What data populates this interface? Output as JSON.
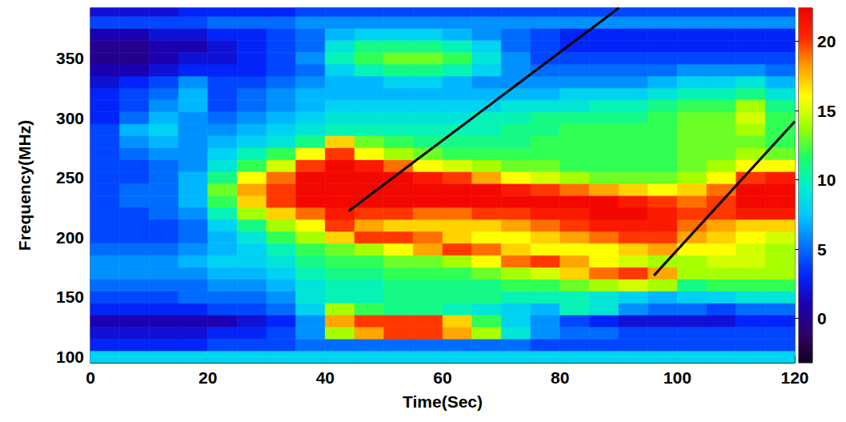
{
  "chart_data": {
    "type": "heatmap",
    "xlabel": "Time(Sec)",
    "ylabel": "Frequency(MHz)",
    "xlim": [
      0,
      120
    ],
    "xticks": [
      0,
      20,
      40,
      60,
      80,
      100,
      120
    ],
    "ylim": [
      95,
      392
    ],
    "yticks": [
      100,
      150,
      200,
      250,
      300,
      350
    ],
    "grid": false,
    "time_bins": [
      0,
      5,
      10,
      15,
      20,
      25,
      30,
      35,
      40,
      45,
      50,
      55,
      60,
      65,
      70,
      75,
      80,
      85,
      90,
      95,
      100,
      105,
      110,
      115,
      120
    ],
    "frequency_bins": [
      95,
      105,
      115,
      125,
      135,
      145,
      155,
      165,
      175,
      185,
      195,
      205,
      215,
      225,
      235,
      245,
      255,
      265,
      275,
      285,
      295,
      305,
      315,
      325,
      335,
      345,
      355,
      365,
      375,
      385,
      395
    ],
    "cells": [
      [
        8,
        8,
        8,
        8,
        8,
        8,
        8,
        8,
        8,
        8,
        8,
        8,
        8,
        8,
        8,
        8,
        8,
        8,
        8,
        8,
        8,
        8,
        8,
        8
      ],
      [
        3,
        3,
        3,
        3,
        4,
        4,
        4,
        5,
        5,
        5,
        5,
        5,
        5,
        5,
        5,
        4,
        4,
        4,
        4,
        4,
        4,
        4,
        4,
        4
      ],
      [
        2,
        2,
        2,
        2,
        3,
        3,
        4,
        6,
        14,
        18,
        20,
        20,
        18,
        14,
        9,
        6,
        5,
        5,
        4,
        4,
        4,
        4,
        4,
        4
      ],
      [
        1,
        1,
        1,
        1,
        1,
        2,
        3,
        6,
        18,
        20,
        20,
        20,
        17,
        12,
        8,
        6,
        4,
        3,
        2,
        2,
        2,
        2,
        3,
        3
      ],
      [
        3,
        3,
        3,
        3,
        4,
        4,
        5,
        8,
        14,
        12,
        11,
        11,
        10,
        9,
        8,
        7,
        10,
        9,
        6,
        5,
        5,
        4,
        5,
        5
      ],
      [
        4,
        4,
        4,
        5,
        5,
        5,
        6,
        9,
        10,
        10,
        11,
        11,
        11,
        11,
        10,
        10,
        10,
        9,
        8,
        7,
        8,
        8,
        9,
        9
      ],
      [
        5,
        5,
        5,
        5,
        6,
        6,
        7,
        9,
        10,
        10,
        11,
        11,
        11,
        11,
        12,
        12,
        13,
        14,
        15,
        14,
        11,
        12,
        12,
        12
      ],
      [
        6,
        6,
        6,
        6,
        7,
        7,
        8,
        10,
        11,
        11,
        12,
        12,
        12,
        13,
        14,
        15,
        17,
        19,
        20,
        18,
        14,
        14,
        14,
        14
      ],
      [
        6,
        6,
        6,
        7,
        8,
        8,
        9,
        11,
        12,
        12,
        13,
        13,
        14,
        16,
        19,
        20,
        18,
        16,
        15,
        14,
        14,
        15,
        15,
        14
      ],
      [
        5,
        5,
        5,
        6,
        7,
        8,
        10,
        12,
        13,
        14,
        16,
        18,
        20,
        19,
        17,
        16,
        16,
        16,
        17,
        18,
        16,
        16,
        15,
        14
      ],
      [
        4,
        4,
        4,
        5,
        7,
        9,
        12,
        14,
        17,
        20,
        20,
        19,
        17,
        16,
        16,
        17,
        18,
        19,
        20,
        20,
        18,
        17,
        16,
        15
      ],
      [
        4,
        4,
        4,
        5,
        8,
        11,
        14,
        16,
        20,
        18,
        17,
        17,
        17,
        17,
        18,
        19,
        20,
        21,
        21,
        21,
        19,
        18,
        17,
        17
      ],
      [
        4,
        4,
        5,
        6,
        10,
        14,
        17,
        19,
        21,
        20,
        20,
        19,
        19,
        20,
        20,
        21,
        21,
        22,
        22,
        21,
        20,
        20,
        21,
        21
      ],
      [
        4,
        5,
        5,
        7,
        12,
        17,
        20,
        22,
        22,
        22,
        22,
        22,
        22,
        22,
        22,
        22,
        22,
        22,
        21,
        20,
        19,
        20,
        22,
        22
      ],
      [
        4,
        5,
        5,
        7,
        13,
        18,
        20,
        22,
        22,
        22,
        22,
        22,
        22,
        22,
        21,
        20,
        19,
        18,
        17,
        16,
        17,
        19,
        22,
        22
      ],
      [
        4,
        4,
        5,
        7,
        11,
        16,
        19,
        22,
        22,
        22,
        22,
        21,
        20,
        18,
        16,
        15,
        14,
        13,
        13,
        13,
        14,
        16,
        20,
        21
      ],
      [
        4,
        4,
        5,
        6,
        9,
        12,
        15,
        20,
        22,
        21,
        19,
        16,
        15,
        14,
        13,
        13,
        12,
        12,
        12,
        12,
        13,
        14,
        16,
        16
      ],
      [
        4,
        5,
        6,
        6,
        8,
        10,
        12,
        16,
        20,
        16,
        14,
        13,
        12,
        12,
        12,
        12,
        12,
        12,
        12,
        12,
        13,
        13,
        14,
        13
      ],
      [
        4,
        6,
        7,
        6,
        7,
        8,
        9,
        11,
        17,
        13,
        12,
        11,
        11,
        11,
        11,
        12,
        12,
        12,
        12,
        12,
        13,
        13,
        13,
        12
      ],
      [
        4,
        7,
        8,
        6,
        6,
        7,
        8,
        9,
        10,
        10,
        10,
        10,
        10,
        10,
        11,
        11,
        12,
        12,
        12,
        12,
        13,
        13,
        14,
        12
      ],
      [
        3,
        5,
        7,
        6,
        5,
        6,
        7,
        8,
        9,
        9,
        9,
        9,
        9,
        10,
        10,
        11,
        11,
        11,
        11,
        12,
        13,
        13,
        15,
        12
      ],
      [
        3,
        4,
        6,
        7,
        4,
        5,
        6,
        7,
        8,
        8,
        8,
        8,
        8,
        8,
        9,
        9,
        9,
        10,
        10,
        11,
        12,
        12,
        14,
        11
      ],
      [
        3,
        4,
        5,
        7,
        4,
        5,
        6,
        7,
        7,
        7,
        7,
        7,
        7,
        7,
        7,
        7,
        8,
        8,
        8,
        9,
        10,
        10,
        11,
        9
      ],
      [
        2,
        3,
        4,
        6,
        4,
        4,
        5,
        6,
        7,
        7,
        8,
        8,
        7,
        6,
        6,
        6,
        6,
        6,
        6,
        7,
        8,
        8,
        9,
        7
      ],
      [
        1,
        1,
        2,
        3,
        3,
        3,
        4,
        5,
        8,
        10,
        11,
        11,
        10,
        8,
        6,
        5,
        5,
        5,
        5,
        5,
        6,
        6,
        6,
        5
      ],
      [
        0,
        0,
        1,
        2,
        2,
        3,
        4,
        6,
        10,
        12,
        13,
        13,
        12,
        9,
        6,
        4,
        4,
        4,
        4,
        4,
        4,
        4,
        4,
        4
      ],
      [
        0,
        0,
        1,
        1,
        2,
        3,
        4,
        5,
        9,
        11,
        11,
        11,
        10,
        8,
        5,
        4,
        3,
        3,
        3,
        3,
        3,
        3,
        3,
        3
      ],
      [
        1,
        1,
        2,
        2,
        3,
        3,
        4,
        5,
        7,
        8,
        8,
        8,
        7,
        6,
        5,
        4,
        3,
        3,
        3,
        3,
        3,
        3,
        3,
        3
      ],
      [
        4,
        4,
        4,
        4,
        5,
        5,
        5,
        6,
        6,
        6,
        6,
        6,
        6,
        6,
        6,
        6,
        6,
        6,
        6,
        6,
        6,
        6,
        6,
        6
      ],
      [
        2,
        2,
        2,
        3,
        3,
        3,
        3,
        4,
        4,
        4,
        4,
        4,
        4,
        4,
        4,
        4,
        4,
        4,
        4,
        4,
        4,
        4,
        4,
        4
      ]
    ],
    "colorbar": {
      "range": [
        -3.2,
        22.4
      ],
      "ticks": [
        0,
        5,
        10,
        15,
        20
      ]
    },
    "annotation_lines": [
      {
        "x": [
          44,
          90
        ],
        "y": [
          222,
          392
        ]
      },
      {
        "x": [
          96,
          120
        ],
        "y": [
          168,
          297
        ]
      }
    ]
  }
}
